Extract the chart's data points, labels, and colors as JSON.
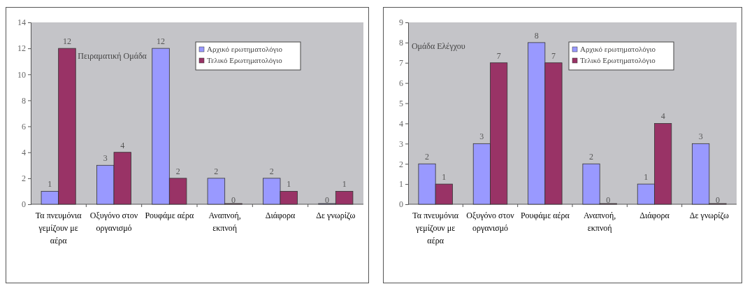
{
  "chart_data": [
    {
      "type": "bar",
      "title": "Πειραματική Ομάδα",
      "categories": [
        "Τα πνευμόνια γεμίζουν με αέρα",
        "Οξυγόνο στον οργανισμό",
        "Ρουφάμε αέρα",
        "Αναπνοή, εκπνοή",
        "Διάφορα",
        "Δε γνωρίζω"
      ],
      "series": [
        {
          "name": "Αρχικό ερωτηματολόγιο",
          "color": "#9999ff",
          "values": [
            1,
            3,
            12,
            2,
            2,
            0
          ]
        },
        {
          "name": "Τελικό Ερωτηματολόγιο",
          "color": "#993366",
          "values": [
            12,
            4,
            2,
            0,
            1,
            1
          ]
        }
      ],
      "ylim": [
        0,
        14
      ],
      "yticks": [
        0,
        2,
        4,
        6,
        8,
        10,
        12,
        14
      ],
      "data_labels": true,
      "legend": "top right"
    },
    {
      "type": "bar",
      "title": "Ομάδα Ελέγχου",
      "categories": [
        "Τα πνευμόνια γεμίζουν με αέρα",
        "Οξυγόνο στον οργανισμό",
        "Ρουφάμε αέρα",
        "Αναπνοή, εκπνοή",
        "Διάφορα",
        "Δε γνωρίζω"
      ],
      "series": [
        {
          "name": "Αρχικό ερωτηματολόγιο",
          "color": "#9999ff",
          "values": [
            2,
            3,
            8,
            2,
            1,
            3
          ]
        },
        {
          "name": "Τελικό Ερωτηματολόγιο",
          "color": "#993366",
          "values": [
            1,
            7,
            7,
            0,
            4,
            0
          ]
        }
      ],
      "ylim": [
        0,
        9
      ],
      "yticks": [
        0,
        1,
        2,
        3,
        4,
        5,
        6,
        7,
        8,
        9
      ],
      "data_labels": true,
      "legend": "top right"
    }
  ]
}
